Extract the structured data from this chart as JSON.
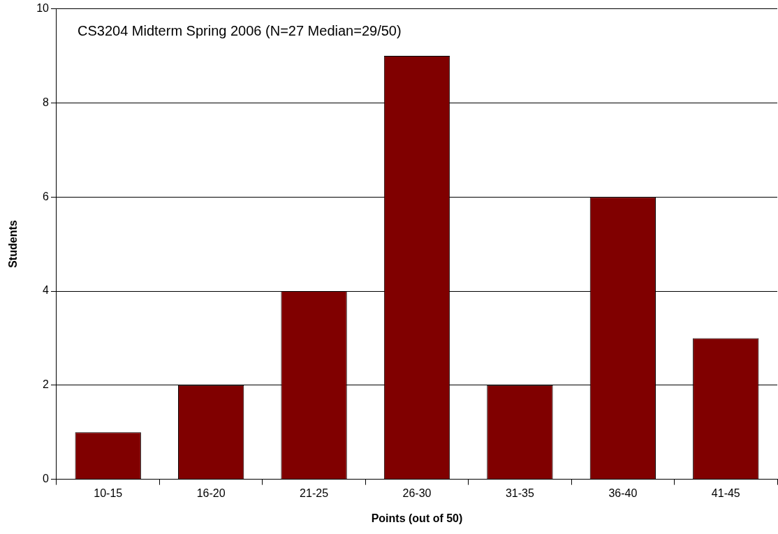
{
  "chart_data": {
    "type": "bar",
    "title": "CS3204 Midterm Spring 2006 (N=27 Median=29/50)",
    "xlabel": "Points (out of 50)",
    "ylabel": "Students",
    "categories": [
      "10-15",
      "16-20",
      "21-25",
      "26-30",
      "31-35",
      "36-40",
      "41-45"
    ],
    "values": [
      1,
      2,
      4,
      9,
      2,
      6,
      3
    ],
    "color": "#800000",
    "ylim": [
      0,
      10
    ],
    "yticks": [
      0,
      2,
      4,
      6,
      8,
      10
    ],
    "grid": "y",
    "legend": false
  }
}
